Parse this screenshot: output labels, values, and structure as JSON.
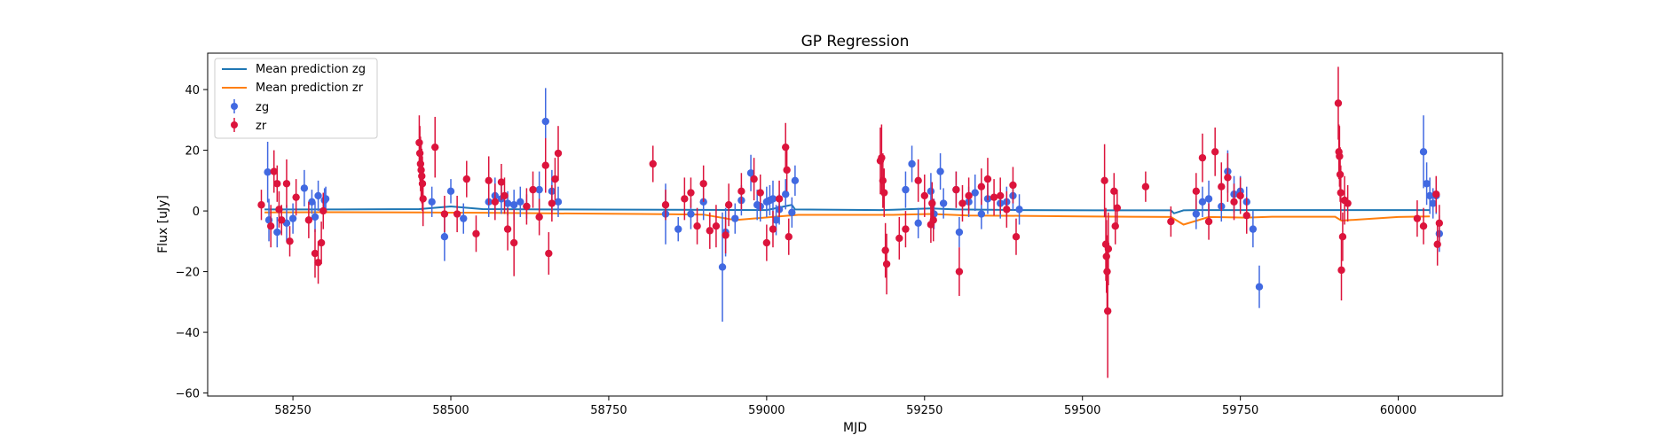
{
  "chart_data": {
    "type": "scatter",
    "title": "GP Regression",
    "xlabel": "MJD",
    "ylabel": "Flux [uJy]",
    "xlim": [
      58115,
      60165
    ],
    "ylim": [
      -61,
      52
    ],
    "xticks": [
      58250,
      58500,
      58750,
      59000,
      59250,
      59500,
      59750,
      60000
    ],
    "yticks": [
      -60,
      -40,
      -20,
      0,
      20,
      40
    ],
    "legend": {
      "position": "top-left",
      "entries": [
        "Mean prediction zg",
        "Mean prediction zr",
        "zg",
        "zr"
      ]
    },
    "colors": {
      "zg_points": "#4169e1",
      "zr_points": "#dc143c",
      "mean_zg": "#1f77b4",
      "mean_zr": "#ff7f0e"
    },
    "series": [
      {
        "name": "Mean prediction zg",
        "kind": "line",
        "x": [
          58205,
          58300,
          58450,
          58500,
          58550,
          58650,
          58680,
          58850,
          59000,
          59040,
          59045,
          59180,
          59200,
          59260,
          59300,
          59400,
          59520,
          59640,
          59645,
          59660,
          59680,
          59780,
          59900,
          60050
        ],
        "y": [
          0.5,
          0.5,
          0.6,
          1.5,
          0.6,
          0.5,
          0.5,
          0.4,
          0.3,
          2.0,
          0.5,
          0.3,
          0.4,
          0.8,
          0.5,
          0.3,
          0.2,
          0.2,
          -0.8,
          0.2,
          0.3,
          0.3,
          0.3,
          0.3
        ]
      },
      {
        "name": "Mean prediction zr",
        "kind": "line",
        "x": [
          58205,
          58300,
          58450,
          58550,
          58650,
          58800,
          58900,
          58950,
          59050,
          59200,
          59260,
          59320,
          59400,
          59500,
          59640,
          59660,
          59700,
          59760,
          59800,
          59900,
          59910,
          60000,
          60050
        ],
        "y": [
          -0.5,
          -0.4,
          -0.5,
          -0.6,
          -0.8,
          -1.0,
          -1.2,
          -3.0,
          -1.3,
          -1.3,
          -1.0,
          -1.5,
          -1.6,
          -1.8,
          -2.0,
          -4.5,
          -2.0,
          -2.2,
          -1.9,
          -1.9,
          -3.2,
          -2.0,
          -1.8
        ]
      },
      {
        "name": "zg",
        "kind": "errorbar",
        "x": [
          58210,
          58212,
          58225,
          58240,
          58250,
          58268,
          58280,
          58285,
          58290,
          58300,
          58302,
          58470,
          58490,
          58500,
          58520,
          58560,
          58570,
          58580,
          58590,
          58600,
          58610,
          58620,
          58640,
          58650,
          58660,
          58670,
          58840,
          58860,
          58880,
          58900,
          58930,
          58935,
          58950,
          58960,
          58975,
          58985,
          58990,
          59000,
          59005,
          59010,
          59015,
          59020,
          59030,
          59040,
          59045,
          59220,
          59230,
          59240,
          59260,
          59265,
          59275,
          59280,
          59300,
          59305,
          59320,
          59330,
          59340,
          59350,
          59370,
          59380,
          59390,
          59400,
          59680,
          59690,
          59700,
          59720,
          59730,
          59740,
          59750,
          59760,
          59770,
          59780,
          60040,
          60045,
          60050,
          60055,
          60060,
          60065
        ],
        "y": [
          12.8,
          -3.0,
          -7.0,
          -4.0,
          -2.5,
          7.5,
          3.0,
          -2.0,
          5.0,
          3.5,
          4.0,
          3.0,
          -8.5,
          6.5,
          -2.5,
          3.0,
          5.0,
          4.0,
          2.5,
          2.0,
          3.0,
          1.5,
          7.0,
          29.5,
          6.5,
          3.0,
          -1.0,
          -6.0,
          -1.0,
          3.0,
          -18.5,
          -7.0,
          -2.5,
          3.5,
          12.5,
          2.0,
          1.5,
          3.0,
          3.5,
          4.0,
          -3.0,
          0.5,
          5.5,
          -0.5,
          10.0,
          7.0,
          15.5,
          -4.0,
          6.5,
          -1.0,
          13.0,
          2.5,
          7.0,
          -7.0,
          3.0,
          6.0,
          -1.0,
          4.0,
          2.5,
          3.0,
          5.0,
          0.5,
          -1.0,
          3.0,
          4.0,
          1.5,
          13.0,
          5.5,
          6.5,
          3.0,
          -6.0,
          -25.0,
          19.5,
          9.0,
          5.0,
          2.5,
          5.0,
          -7.5
        ],
        "error": [
          10,
          7,
          5,
          6,
          5,
          6,
          4,
          5,
          5,
          4,
          4,
          5,
          8,
          4,
          5,
          5,
          6,
          5,
          4,
          5,
          5,
          4,
          6,
          11,
          7,
          5,
          10,
          4,
          5,
          6,
          18,
          8,
          5,
          5,
          6,
          5,
          5,
          5,
          5,
          6,
          5,
          5,
          5,
          5,
          5,
          6,
          6,
          5,
          6,
          5,
          6,
          5,
          6,
          5,
          5,
          6,
          5,
          5,
          5,
          5,
          5,
          5,
          5,
          5,
          6,
          5,
          7,
          6,
          5,
          5,
          6,
          7,
          12,
          7,
          6,
          5,
          6,
          6
        ]
      },
      {
        "name": "zr",
        "kind": "errorbar",
        "x": [
          58200,
          58215,
          58220,
          58225,
          58228,
          58232,
          58240,
          58245,
          58255,
          58275,
          58285,
          58290,
          58295,
          58298,
          58450,
          58451,
          58452,
          58453,
          58454,
          58455,
          58456,
          58475,
          58490,
          58510,
          58525,
          58540,
          58560,
          58570,
          58580,
          58585,
          58590,
          58600,
          58620,
          58630,
          58640,
          58650,
          58655,
          58660,
          58665,
          58670,
          58820,
          58840,
          58870,
          58880,
          58890,
          58900,
          58910,
          58920,
          58935,
          58940,
          58960,
          58980,
          58990,
          59000,
          59010,
          59020,
          59030,
          59032,
          59035,
          59180,
          59182,
          59184,
          59186,
          59188,
          59190,
          59210,
          59220,
          59240,
          59250,
          59260,
          59262,
          59264,
          59300,
          59305,
          59310,
          59320,
          59340,
          59350,
          59360,
          59370,
          59380,
          59390,
          59395,
          59535,
          59537,
          59538,
          59539,
          59540,
          59541,
          59550,
          59552,
          59555,
          59600,
          59640,
          59680,
          59690,
          59700,
          59710,
          59720,
          59730,
          59740,
          59750,
          59760,
          59905,
          59906,
          59907,
          59908,
          59909,
          59910,
          59912,
          59915,
          59920,
          60030,
          60040,
          60060,
          60062,
          60065
        ],
        "y": [
          2.0,
          -5.0,
          13.0,
          9.0,
          0.5,
          -3.0,
          9.0,
          -10.0,
          4.5,
          -3.0,
          -14.0,
          -17.0,
          -10.5,
          0.0,
          22.5,
          19.0,
          15.5,
          13.5,
          11.5,
          9.0,
          4.0,
          21.0,
          -1.0,
          -1.0,
          10.5,
          -7.5,
          10.0,
          3.0,
          9.5,
          5.0,
          -6.0,
          -10.5,
          1.5,
          7.0,
          -2.0,
          15.0,
          -14.0,
          2.5,
          10.5,
          19.0,
          15.5,
          2.0,
          4.0,
          6.0,
          -5.0,
          9.0,
          -6.5,
          -5.0,
          -8.0,
          2.0,
          6.5,
          10.5,
          6.0,
          -10.5,
          -6.0,
          4.0,
          21.0,
          13.5,
          -8.5,
          16.5,
          17.5,
          10.0,
          6.0,
          -13.0,
          -17.5,
          -9.0,
          -6.0,
          10.0,
          5.0,
          -4.5,
          2.5,
          -3.0,
          7.0,
          -20.0,
          2.5,
          5.0,
          8.0,
          10.5,
          4.5,
          5.0,
          0.5,
          8.5,
          -8.5,
          10.0,
          -11.0,
          -15.0,
          -20.0,
          -33.0,
          -12.5,
          6.5,
          -5.0,
          1.0,
          8.0,
          -3.5,
          6.5,
          17.5,
          -3.5,
          19.5,
          8.0,
          11.0,
          3.0,
          5.0,
          -1.5,
          35.5,
          19.5,
          18.0,
          12.0,
          6.0,
          -19.5,
          -8.5,
          3.5,
          2.5,
          -2.5,
          -5.0,
          5.5,
          -11.0,
          -4.0
        ],
        "error": [
          5,
          7,
          7,
          6,
          6,
          5,
          8,
          5,
          6,
          6,
          8,
          7,
          7,
          6,
          9,
          9,
          9,
          9,
          9,
          9,
          9,
          10,
          6,
          6,
          6,
          6,
          8,
          6,
          6,
          6,
          7,
          11,
          6,
          6,
          6,
          9,
          7,
          6,
          7,
          9,
          6,
          5,
          7,
          5,
          6,
          6,
          6,
          7,
          6,
          7,
          6,
          7,
          6,
          6,
          6,
          6,
          8,
          7,
          6,
          11,
          11,
          9,
          8,
          9,
          10,
          7,
          6,
          7,
          7,
          6,
          7,
          7,
          6,
          8,
          6,
          6,
          6,
          7,
          6,
          6,
          6,
          6,
          6,
          12,
          12,
          12,
          12,
          22,
          12,
          6,
          6,
          6,
          5,
          5,
          6,
          8,
          6,
          8,
          8,
          8,
          6,
          6,
          6,
          12,
          9,
          10,
          9,
          9,
          10,
          8,
          8,
          6,
          6,
          6,
          6,
          7,
          6
        ]
      }
    ]
  }
}
